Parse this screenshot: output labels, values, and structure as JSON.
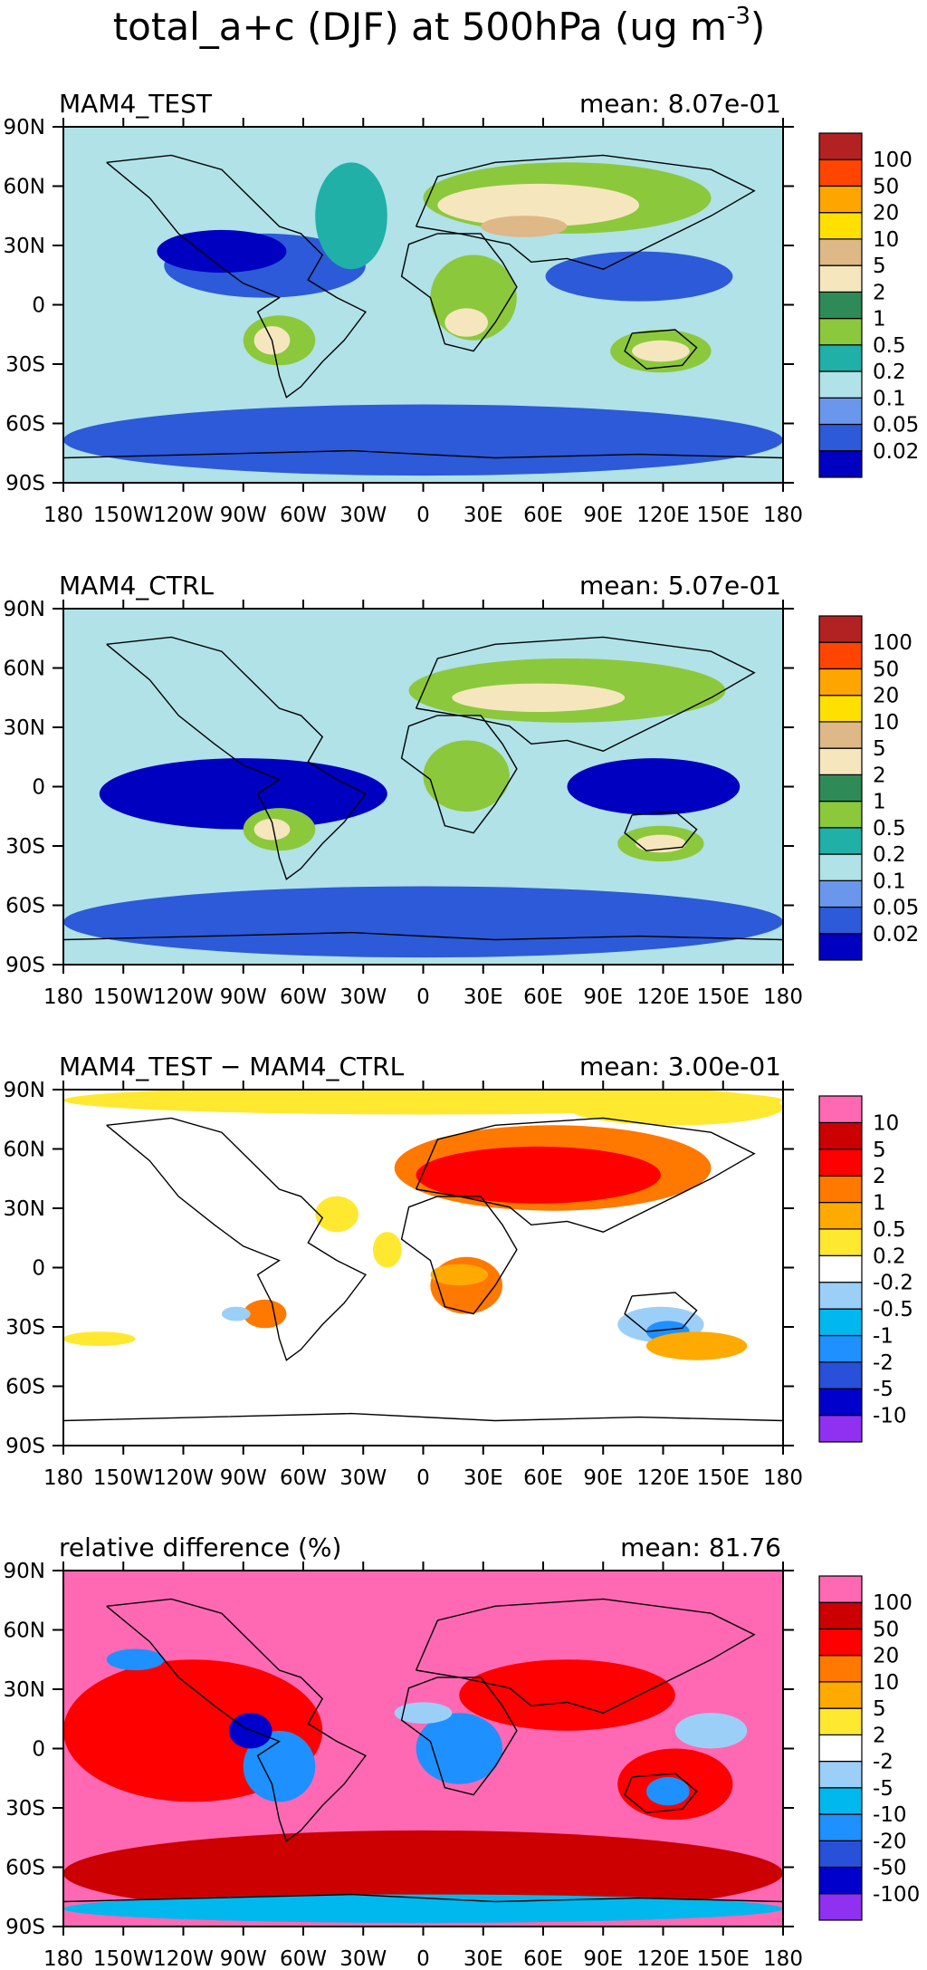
{
  "figure_title": "total_a+c (DJF) at 500hPa (ug m",
  "title_exponent": "-3",
  "title_close": ")",
  "panels": [
    {
      "id": "test",
      "left_title": "MAM4_TEST",
      "right_title": "mean: 8.07e-01",
      "colors": [
        "#0000c0",
        "#2c5ad8",
        "#6a97ec",
        "#b0e2e8",
        "#20b0a8",
        "#8cc83c",
        "#2e8b57",
        "#f6e6be",
        "#deb887",
        "#ffe000",
        "#ffa500",
        "#ff4500",
        "#b22222"
      ],
      "labels": [
        "0.02",
        "0.05",
        "0.1",
        "0.2",
        "0.5",
        "1",
        "2",
        "5",
        "10",
        "20",
        "50",
        "100"
      ]
    },
    {
      "id": "ctrl",
      "left_title": "MAM4_CTRL",
      "right_title": "mean: 5.07e-01",
      "colors": [
        "#0000c0",
        "#2c5ad8",
        "#6a97ec",
        "#b0e2e8",
        "#20b0a8",
        "#8cc83c",
        "#2e8b57",
        "#f6e6be",
        "#deb887",
        "#ffe000",
        "#ffa500",
        "#ff4500",
        "#b22222"
      ],
      "labels": [
        "0.02",
        "0.05",
        "0.1",
        "0.2",
        "0.5",
        "1",
        "2",
        "5",
        "10",
        "20",
        "50",
        "100"
      ]
    },
    {
      "id": "diff",
      "left_title": "MAM4_TEST − MAM4_CTRL",
      "right_title": "mean: 3.00e-01",
      "colors": [
        "#9030f0",
        "#0000cd",
        "#2850d8",
        "#1e90ff",
        "#00b8ee",
        "#9ccff8",
        "#ffffff",
        "#ffe830",
        "#ffaa00",
        "#ff7800",
        "#ff0000",
        "#cc0000",
        "#ff69b4"
      ],
      "labels": [
        "-10",
        "-5",
        "-2",
        "-1",
        "-0.5",
        "-0.2",
        "0.2",
        "0.5",
        "1",
        "2",
        "5",
        "10"
      ]
    },
    {
      "id": "rel",
      "left_title": "relative difference (%)",
      "right_title": "mean: 81.76",
      "colors": [
        "#9030f0",
        "#0000cd",
        "#2850d8",
        "#1e90ff",
        "#00b8ee",
        "#9ccff8",
        "#ffffff",
        "#ffe830",
        "#ffaa00",
        "#ff7800",
        "#ff0000",
        "#cc0000",
        "#ff69b4"
      ],
      "labels": [
        "-100",
        "-50",
        "-20",
        "-10",
        "-5",
        "-2",
        "2",
        "5",
        "10",
        "20",
        "50",
        "100"
      ]
    }
  ],
  "chart_data": {
    "type": "heatmap",
    "title": "total_a+c (DJF) at 500hPa (ug m-3)",
    "x_ticks": [
      "180",
      "150W",
      "120W",
      "90W",
      "60W",
      "30W",
      "0",
      "30E",
      "60E",
      "90E",
      "120E",
      "150E",
      "180"
    ],
    "y_ticks": [
      "90N",
      "60N",
      "30N",
      "0",
      "30S",
      "60S",
      "90S"
    ],
    "xlim": [
      -180,
      180
    ],
    "ylim": [
      -90,
      90
    ],
    "panels": [
      "MAM4_TEST",
      "MAM4_CTRL",
      "MAM4_TEST − MAM4_CTRL",
      "relative difference (%)"
    ],
    "means": [
      "8.07e-01",
      "5.07e-01",
      "3.00e-01",
      "81.76"
    ]
  }
}
